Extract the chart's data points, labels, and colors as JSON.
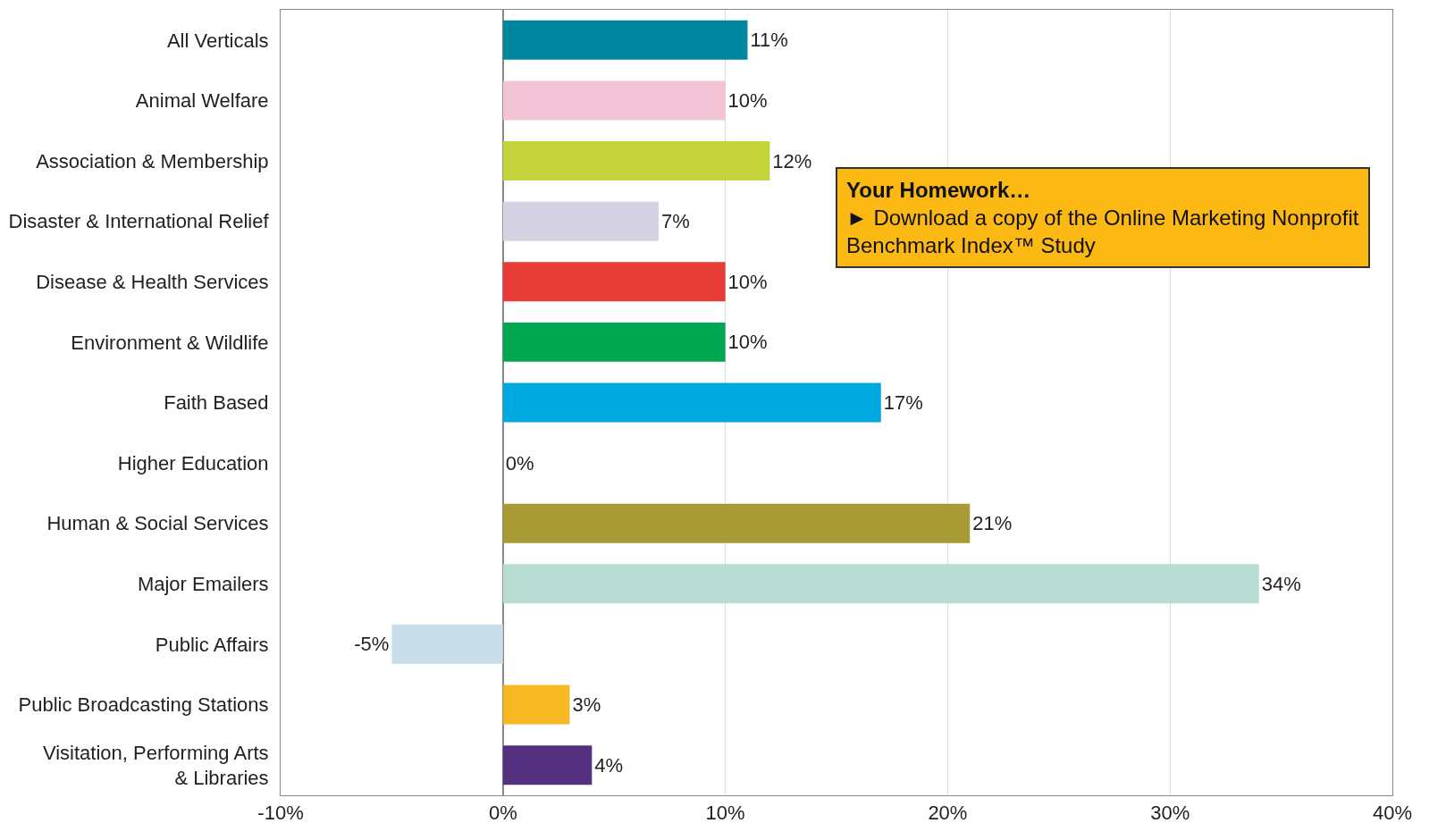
{
  "chart_data": {
    "type": "bar",
    "orientation": "horizontal",
    "categories": [
      "All Verticals",
      "Animal Welfare",
      "Association & Membership",
      "Disaster & International Relief",
      "Disease & Health Services",
      "Environment & Wildlife",
      "Faith Based",
      "Higher Education",
      "Human & Social Services",
      "Major Emailers",
      "Public Affairs",
      "Public Broadcasting Stations",
      "Visitation, Performing Arts\n& Libraries"
    ],
    "values": [
      11,
      10,
      12,
      7,
      10,
      10,
      17,
      0,
      21,
      34,
      -5,
      3,
      4
    ],
    "value_labels": [
      "11%",
      "10%",
      "12%",
      "7%",
      "10%",
      "10%",
      "17%",
      "0%",
      "21%",
      "34%",
      "-5%",
      "3%",
      "4%"
    ],
    "colors": [
      "#00869e",
      "#f2c4d6",
      "#c4d23c",
      "#d5d3e3",
      "#e83d37",
      "#00a650",
      "#00a9de",
      null,
      "#a89a34",
      "#b7ddd3",
      "#c8dfea",
      "#f6b924",
      "#55307f"
    ],
    "xlim": [
      -10,
      40
    ],
    "xticks": [
      {
        "value": -10,
        "label": "-10%"
      },
      {
        "value": 0,
        "label": "0%"
      },
      {
        "value": 10,
        "label": "10%"
      },
      {
        "value": 20,
        "label": "20%"
      },
      {
        "value": 30,
        "label": "30%"
      },
      {
        "value": 40,
        "label": "40%"
      }
    ],
    "grid": "x",
    "legend": false,
    "annotations": [
      "Your Homework…",
      "► Download a copy of the Online Marketing Nonprofit\nBenchmark Index™ Study"
    ]
  }
}
